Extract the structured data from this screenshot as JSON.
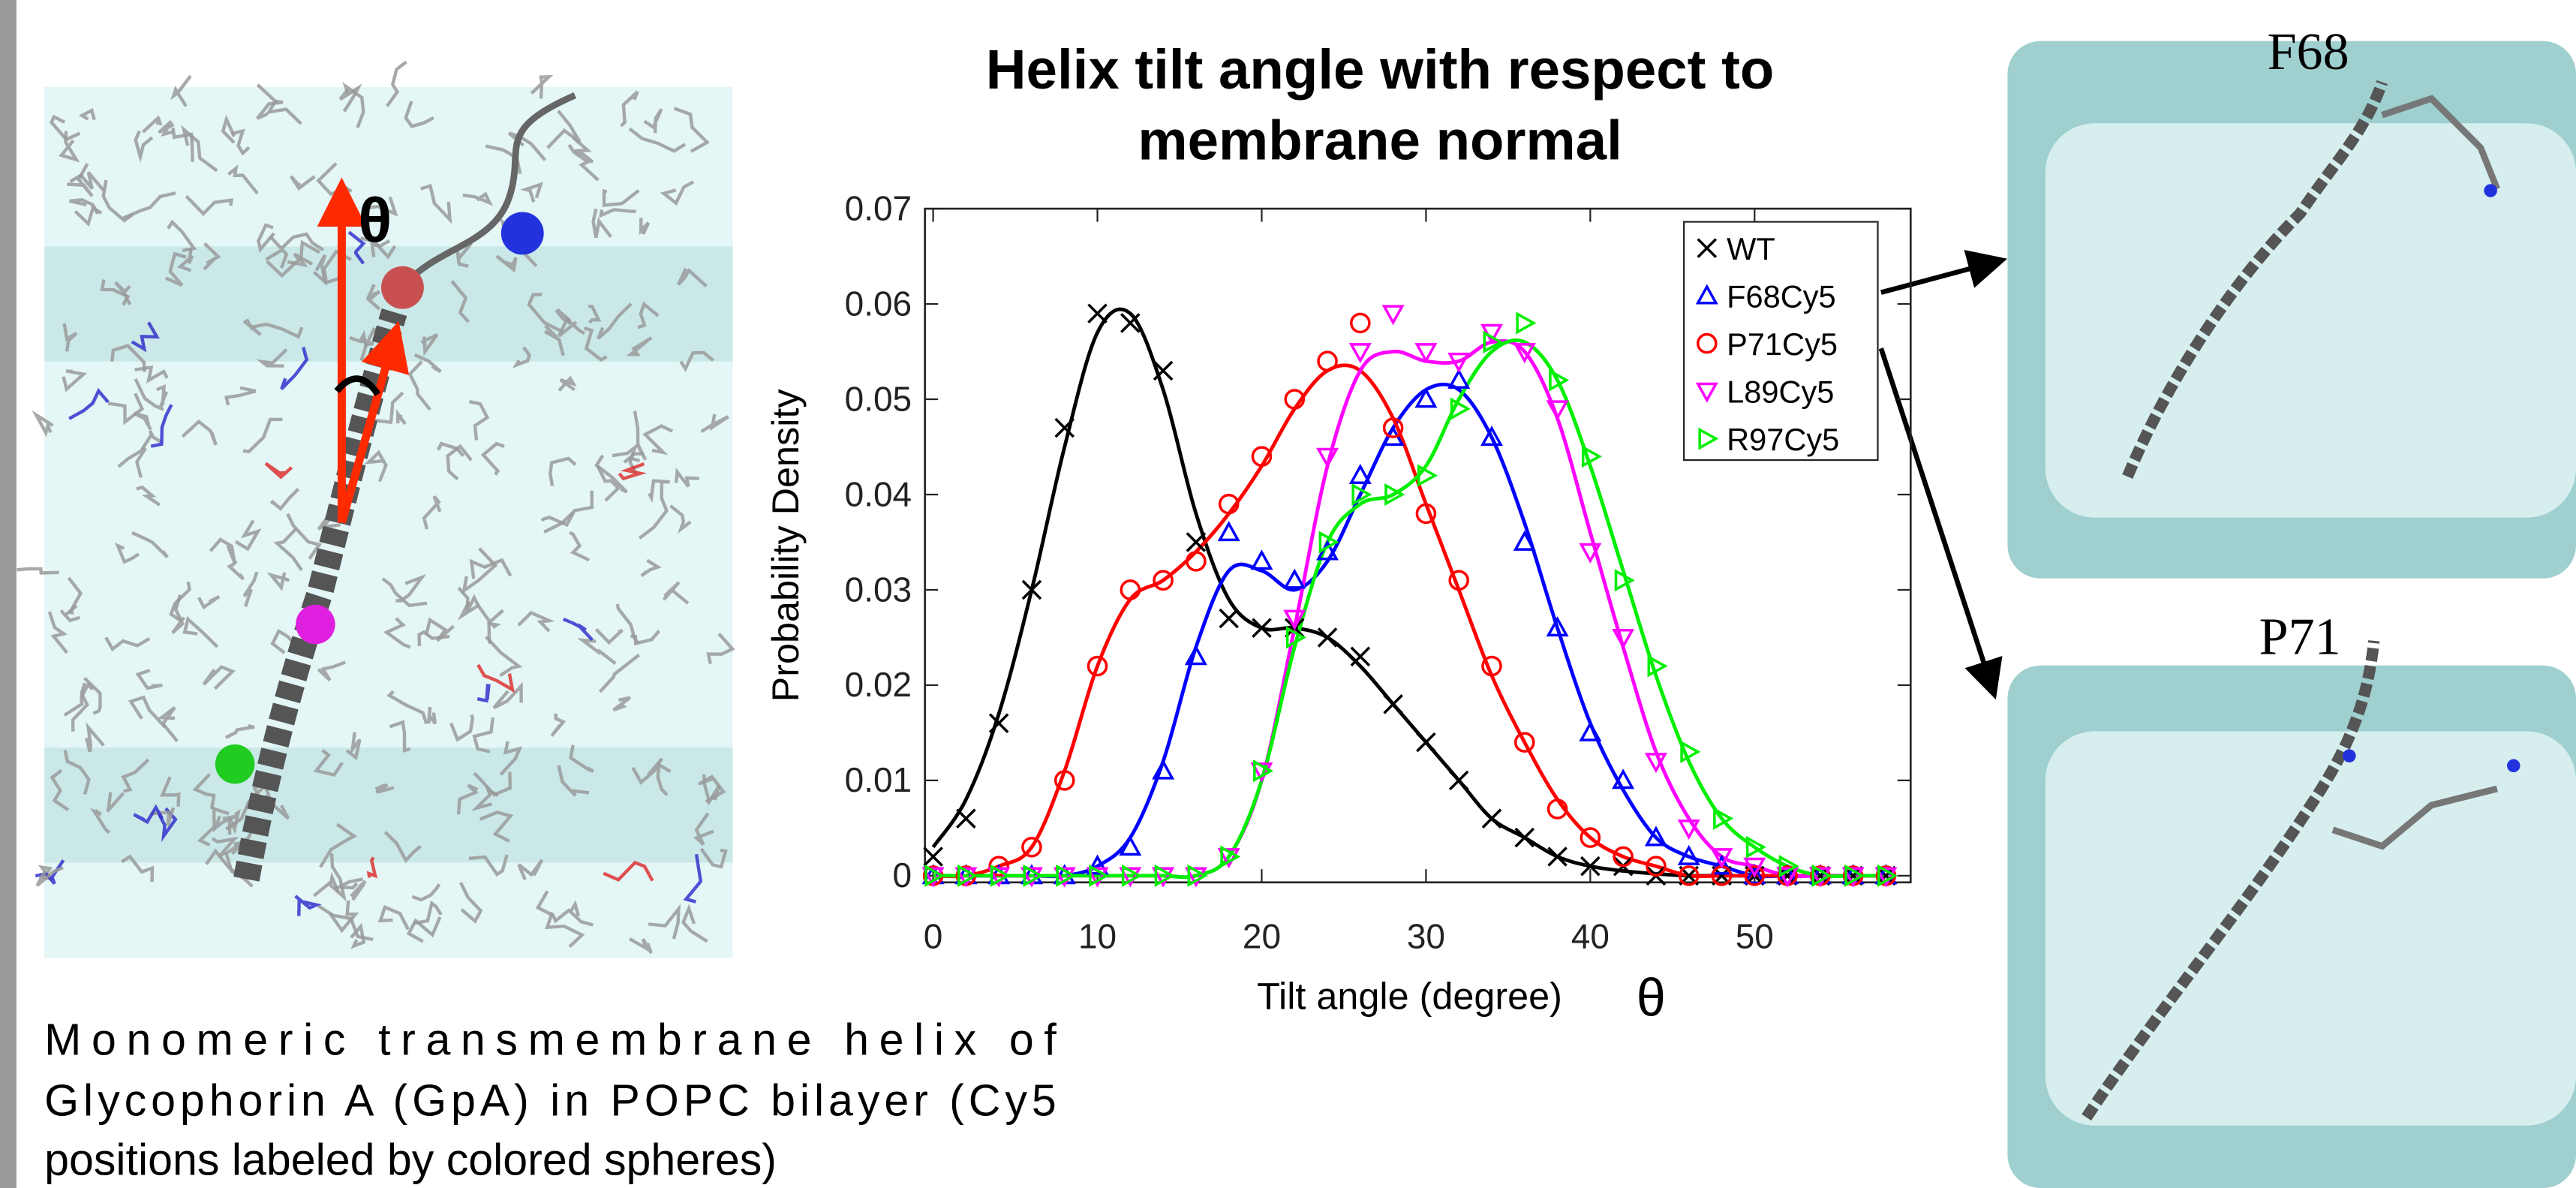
{
  "left_panel": {
    "angle_label": "θ",
    "caption": [
      "Monomeric transmembrane helix of",
      "Glycophorin A (GpA) in POPC bilayer (Cy5",
      "positions labeled by colored spheres)"
    ]
  },
  "right_panels": [
    {
      "label": "F68"
    },
    {
      "label": "P71"
    }
  ],
  "chart_data": {
    "type": "scatter",
    "title": [
      "Helix tilt angle with respect to",
      "membrane normal"
    ],
    "x_label": "Tilt angle (degree)",
    "x_symbol": "θ",
    "y_label": "Probability Density",
    "xlim": [
      -0.5,
      59.5
    ],
    "ylim": [
      -0.0007,
      0.07
    ],
    "xticks": [
      0,
      10,
      20,
      30,
      40,
      50
    ],
    "yticks": [
      0,
      0.01,
      0.02,
      0.03,
      0.04,
      0.05,
      0.06,
      0.07
    ],
    "legend": "top-right",
    "x": [
      0,
      2,
      4,
      6,
      8,
      10,
      12,
      14,
      16,
      18,
      20,
      22,
      24,
      26,
      28,
      30,
      32,
      34,
      36,
      38,
      40,
      42,
      44,
      46,
      48,
      50,
      52,
      54,
      56,
      58
    ],
    "series": [
      {
        "name": "WT",
        "color": "#000000",
        "marker": "x",
        "values": [
          0.002,
          0.006,
          0.016,
          0.03,
          0.047,
          0.059,
          0.058,
          0.053,
          0.035,
          0.027,
          0.026,
          0.026,
          0.025,
          0.023,
          0.018,
          0.014,
          0.01,
          0.006,
          0.004,
          0.002,
          0.001,
          0.001,
          0,
          0,
          0,
          0,
          0,
          0,
          0,
          0
        ],
        "fit": [
          0.003,
          0.008,
          0.017,
          0.03,
          0.045,
          0.057,
          0.059,
          0.051,
          0.038,
          0.029,
          0.026,
          0.026,
          0.025,
          0.022,
          0.018,
          0.014,
          0.01,
          0.006,
          0.004,
          0.002,
          0.001,
          0.0005,
          0.0002,
          0,
          0,
          0,
          0,
          0,
          0,
          0
        ]
      },
      {
        "name": "F68Cy5",
        "color": "#0000ff",
        "marker": "triangle-up",
        "values": [
          0,
          0,
          0,
          0,
          0,
          0.001,
          0.003,
          0.011,
          0.023,
          0.036,
          0.033,
          0.031,
          0.034,
          0.042,
          0.046,
          0.05,
          0.052,
          0.046,
          0.035,
          0.026,
          0.015,
          0.01,
          0.004,
          0.002,
          0.001,
          0,
          0,
          0,
          0,
          0
        ],
        "fit": [
          0,
          0,
          0,
          0,
          0,
          0.001,
          0.004,
          0.012,
          0.024,
          0.032,
          0.032,
          0.03,
          0.033,
          0.04,
          0.047,
          0.051,
          0.051,
          0.046,
          0.037,
          0.026,
          0.016,
          0.009,
          0.004,
          0.002,
          0.001,
          0,
          0,
          0,
          0,
          0
        ]
      },
      {
        "name": "P71Cy5",
        "color": "#ff0000",
        "marker": "circle",
        "values": [
          0,
          0,
          0.001,
          0.003,
          0.01,
          0.022,
          0.03,
          0.031,
          0.033,
          0.039,
          0.044,
          0.05,
          0.054,
          0.058,
          0.047,
          0.038,
          0.031,
          0.022,
          0.014,
          0.007,
          0.004,
          0.002,
          0.001,
          0,
          0,
          0,
          0,
          0,
          0,
          0
        ],
        "fit": [
          0,
          0,
          0.001,
          0.003,
          0.011,
          0.022,
          0.029,
          0.031,
          0.034,
          0.038,
          0.043,
          0.049,
          0.053,
          0.053,
          0.048,
          0.039,
          0.03,
          0.021,
          0.014,
          0.008,
          0.004,
          0.002,
          0.001,
          0,
          0,
          0,
          0,
          0,
          0,
          0
        ]
      },
      {
        "name": "L89Cy5",
        "color": "#ff00ff",
        "marker": "triangle-down",
        "values": [
          0,
          0,
          0,
          0,
          0,
          0,
          0,
          0,
          0,
          0.002,
          0.011,
          0.027,
          0.044,
          0.055,
          0.059,
          0.055,
          0.054,
          0.057,
          0.055,
          0.049,
          0.034,
          0.025,
          0.012,
          0.005,
          0.002,
          0.001,
          0,
          0,
          0,
          0
        ],
        "fit": [
          0,
          0,
          0,
          0,
          0,
          0,
          0,
          0,
          0,
          0.002,
          0.01,
          0.026,
          0.043,
          0.053,
          0.055,
          0.054,
          0.054,
          0.056,
          0.055,
          0.048,
          0.036,
          0.024,
          0.013,
          0.006,
          0.002,
          0.001,
          0,
          0,
          0,
          0
        ]
      },
      {
        "name": "R97Cy5",
        "color": "#00ee00",
        "marker": "triangle-right",
        "values": [
          0,
          0,
          0,
          0,
          0,
          0,
          0,
          0,
          0,
          0.002,
          0.011,
          0.025,
          0.035,
          0.04,
          0.04,
          0.042,
          0.049,
          0.056,
          0.058,
          0.052,
          0.044,
          0.031,
          0.022,
          0.013,
          0.006,
          0.003,
          0.001,
          0,
          0,
          0
        ],
        "fit": [
          0,
          0,
          0,
          0,
          0,
          0,
          0,
          0,
          0,
          0.002,
          0.01,
          0.024,
          0.035,
          0.039,
          0.04,
          0.043,
          0.05,
          0.055,
          0.056,
          0.052,
          0.043,
          0.032,
          0.021,
          0.012,
          0.006,
          0.003,
          0.001,
          0,
          0,
          0
        ]
      }
    ]
  }
}
